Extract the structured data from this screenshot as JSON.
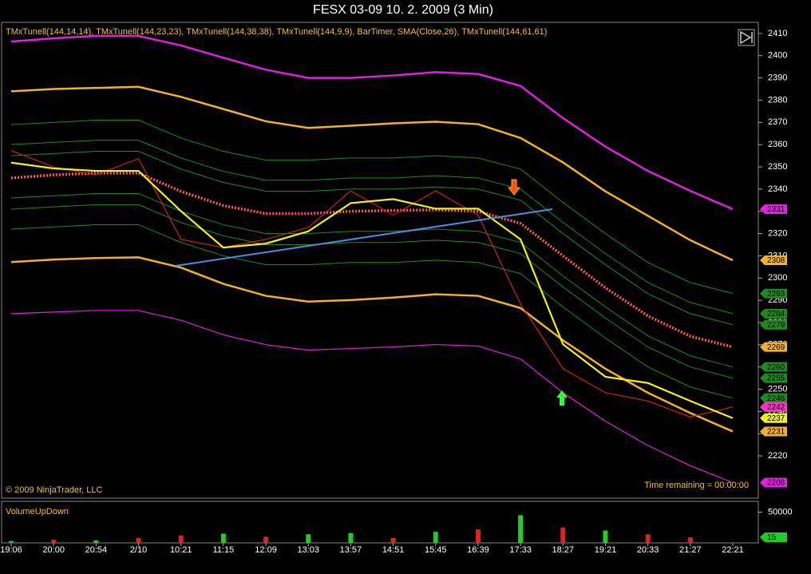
{
  "chart_data": [
    {
      "type": "line",
      "title": "FESX 03-09  10. 2. 2009 (3 Min)",
      "subtitle": "TMxTunell(144,14,14), TMxTunell(144,23,23), TMxTunell(144,38,38), TMxTunell(144,9,9), BarTimer, SMA(Close,26), TMxTunell(144,61,61)",
      "annotations": [
        "© 2009 NinjaTrader, LLC",
        "Time remaining = 00:00:00"
      ],
      "categories": [
        "19:06",
        "20:00",
        "20:54",
        "2/10",
        "10:21",
        "11:15",
        "12:09",
        "13:03",
        "13:57",
        "14:51",
        "15:45",
        "16:39",
        "17:33",
        "18:27",
        "19:21",
        "20:33",
        "21:27",
        "22:21"
      ],
      "ylim": [
        2201,
        2415
      ],
      "yticks": [
        2220,
        2230,
        2240,
        2250,
        2260,
        2270,
        2280,
        2290,
        2300,
        2310,
        2320,
        2330,
        2340,
        2350,
        2360,
        2370,
        2380,
        2390,
        2400,
        2410
      ],
      "series": [
        {
          "color": "#1f8a1f",
          "values": [
            2369,
            2370,
            2371,
            2371,
            2363,
            2357,
            2353,
            2353,
            2354,
            2354,
            2355,
            2354,
            2349,
            2334,
            2320,
            2307,
            2298,
            2293
          ]
        },
        {
          "color": "#1f8a1f",
          "values": [
            2360,
            2361,
            2362,
            2362,
            2354,
            2348,
            2344,
            2344,
            2345,
            2345,
            2346,
            2345,
            2340,
            2325,
            2311,
            2298,
            2289,
            2284
          ]
        },
        {
          "color": "#1f8a1f",
          "values": [
            2355,
            2356,
            2357,
            2357,
            2349,
            2343,
            2339,
            2339,
            2340,
            2340,
            2341,
            2340,
            2335,
            2320,
            2306,
            2293,
            2284,
            2279
          ]
        },
        {
          "color": "#1f8a1f",
          "values": [
            2336,
            2337,
            2338,
            2338,
            2330,
            2324,
            2320,
            2320,
            2321,
            2321,
            2322,
            2321,
            2316,
            2301,
            2287,
            2274,
            2265,
            2260
          ]
        },
        {
          "color": "#1f8a1f",
          "values": [
            2331,
            2332,
            2333,
            2333,
            2325,
            2319,
            2315,
            2315,
            2316,
            2316,
            2317,
            2316,
            2311,
            2296,
            2282,
            2269,
            2260,
            2255
          ]
        },
        {
          "color": "#1f8a1f",
          "values": [
            2322,
            2323,
            2324,
            2324,
            2316,
            2310,
            2306,
            2306,
            2307,
            2307,
            2308,
            2307,
            2302,
            2287,
            2273,
            2260,
            2251,
            2246
          ]
        },
        {
          "color": "#e020e0",
          "values": [
            2406.4,
            2407.8,
            2408.9,
            2408.9,
            2404.6,
            2399.1,
            2393.7,
            2390,
            2390,
            2391.1,
            2392.6,
            2391.8,
            2386.4,
            2371.9,
            2359.1,
            2348.2,
            2339.2,
            2331
          ]
        },
        {
          "color": "#e020e0",
          "values": [
            2284,
            2284.7,
            2285.4,
            2285.4,
            2281,
            2274.5,
            2270,
            2267.6,
            2268.3,
            2269,
            2270.1,
            2269.4,
            2263.6,
            2248.4,
            2235.6,
            2224.7,
            2215.6,
            2208
          ]
        },
        {
          "color": "#f0b030",
          "values": [
            2384,
            2385,
            2385.5,
            2386,
            2381.5,
            2376,
            2370.5,
            2367.5,
            2368.5,
            2369.6,
            2370.3,
            2369.2,
            2363,
            2352,
            2339,
            2328,
            2317,
            2308
          ]
        },
        {
          "color": "#f0b030",
          "values": [
            2307.2,
            2308.3,
            2309,
            2309.3,
            2304.7,
            2297.4,
            2292,
            2289.4,
            2290.1,
            2291.2,
            2292.7,
            2292,
            2286.5,
            2272,
            2259.2,
            2248.4,
            2239.3,
            2231
          ]
        },
        {
          "color": "#ff5a5a",
          "label_color": "#f0b030",
          "values": [
            2345,
            2346.4,
            2347.2,
            2347.2,
            2339,
            2332.6,
            2329,
            2329,
            2330,
            2330.4,
            2330.7,
            2330,
            2324.6,
            2310,
            2295.6,
            2283,
            2273.8,
            2269
          ]
        },
        {
          "color": "#cc2222",
          "label_color": "#ff33cc",
          "values": [
            2357.3,
            2350,
            2346.4,
            2353.7,
            2317.4,
            2313.7,
            2317.4,
            2322.8,
            2339.2,
            2328.3,
            2339.2,
            2328.3,
            2288.3,
            2259.3,
            2248.4,
            2244.7,
            2237.5,
            2242
          ]
        },
        {
          "color": "#f0f020",
          "values": [
            2351.9,
            2349.3,
            2348.2,
            2348.2,
            2330.1,
            2313.7,
            2315.5,
            2321,
            2333.7,
            2335.5,
            2331.2,
            2331.2,
            2317.4,
            2270.2,
            2255.6,
            2252.8,
            2244.7,
            2237
          ]
        }
      ]
    },
    {
      "type": "bar",
      "title": "VolumeUpDown",
      "ylim": [
        0,
        67500
      ],
      "yticks": [
        50000
      ],
      "values": [
        3000,
        5000,
        4000,
        8000,
        12000,
        15000,
        10000,
        14000,
        16000,
        8000,
        18000,
        22000,
        45000,
        25000,
        20000,
        14000,
        9000,
        15
      ],
      "colors": [
        "#22cc22",
        "#dd2222",
        "#22cc22",
        "#dd2222",
        "#dd2222",
        "#22cc22",
        "#dd2222",
        "#22cc22",
        "#22cc22",
        "#dd2222",
        "#22cc22",
        "#dd2222",
        "#22cc22",
        "#dd2222",
        "#22cc22",
        "#dd2222",
        "#dd2222",
        "#22cc22"
      ]
    }
  ]
}
